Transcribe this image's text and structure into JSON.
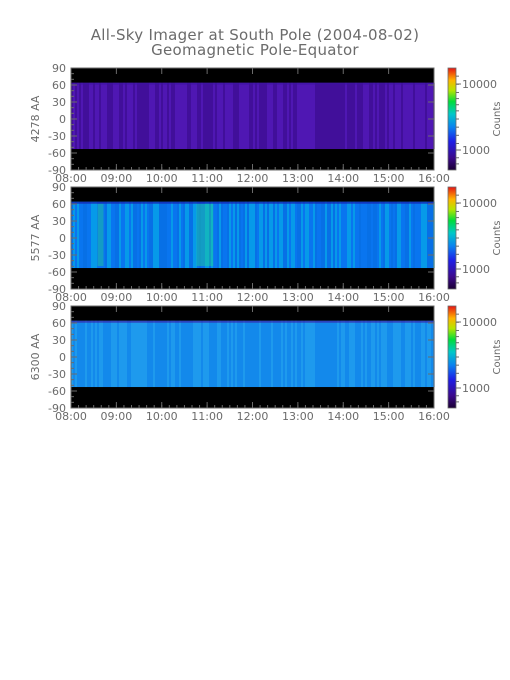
{
  "title": "All-Sky Imager at South Pole (2004-08-02)",
  "subtitle": "Geomagnetic Pole-Equator",
  "chart_data": [
    {
      "type": "heatmap",
      "ylabel": "4278 AA",
      "x_ticks": [
        "08:00",
        "09:00",
        "10:00",
        "11:00",
        "12:00",
        "13:00",
        "14:00",
        "15:00",
        "16:00"
      ],
      "y_ticks": [
        "90",
        "60",
        "30",
        "0",
        "-30",
        "-60",
        "-90"
      ],
      "xlim": [
        "08:00",
        "16:00"
      ],
      "ylim": [
        -90,
        90
      ],
      "data_extent": [
        -53,
        64
      ],
      "colorbar": {
        "label": "Counts",
        "ticks": [
          "10000",
          "1000"
        ],
        "scale": "log"
      },
      "dominant_color": "#4a14a8"
    },
    {
      "type": "heatmap",
      "ylabel": "5577 AA",
      "x_ticks": [
        "08:00",
        "09:00",
        "10:00",
        "11:00",
        "12:00",
        "13:00",
        "14:00",
        "15:00",
        "16:00"
      ],
      "y_ticks": [
        "90",
        "60",
        "30",
        "0",
        "-30",
        "-60",
        "-90"
      ],
      "xlim": [
        "08:00",
        "16:00"
      ],
      "ylim": [
        -90,
        90
      ],
      "data_extent": [
        -53,
        64
      ],
      "colorbar": {
        "label": "Counts",
        "ticks": [
          "10000",
          "1000"
        ],
        "scale": "log"
      },
      "dominant_color": "#0a82f0"
    },
    {
      "type": "heatmap",
      "ylabel": "6300 AA",
      "x_ticks": [
        "08:00",
        "09:00",
        "10:00",
        "11:00",
        "12:00",
        "13:00",
        "14:00",
        "15:00",
        "16:00"
      ],
      "y_ticks": [
        "90",
        "60",
        "30",
        "0",
        "-30",
        "-60",
        "-90"
      ],
      "xlim": [
        "08:00",
        "16:00"
      ],
      "ylim": [
        -90,
        90
      ],
      "data_extent": [
        -53,
        64
      ],
      "colorbar": {
        "label": "Counts",
        "ticks": [
          "10000",
          "1000"
        ],
        "scale": "log"
      },
      "dominant_color": "#1a92ec"
    }
  ]
}
